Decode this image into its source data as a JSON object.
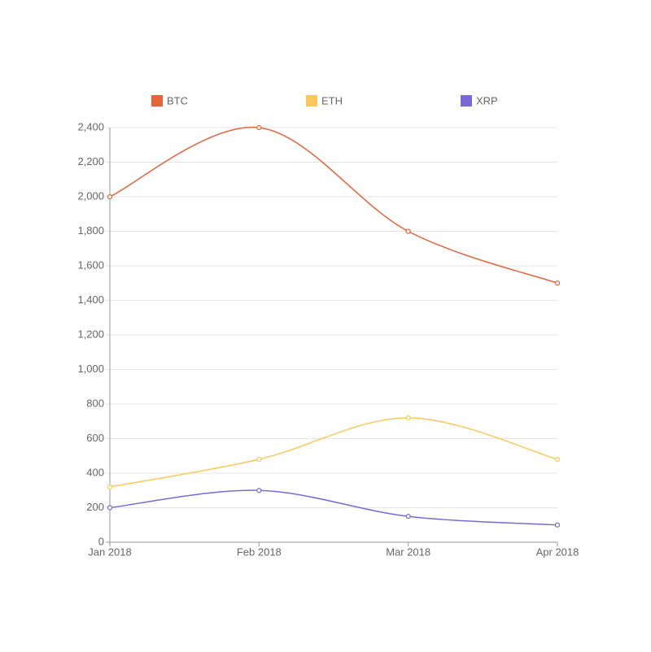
{
  "chart_data": {
    "type": "line",
    "categories": [
      "Jan 2018",
      "Feb 2018",
      "Mar 2018",
      "Apr 2018"
    ],
    "series": [
      {
        "name": "BTC",
        "color": "#e4643c",
        "values": [
          2000,
          2400,
          1800,
          1500
        ]
      },
      {
        "name": "ETH",
        "color": "#f9c85a",
        "values": [
          320,
          480,
          720,
          480
        ]
      },
      {
        "name": "XRP",
        "color": "#7b68d8",
        "values": [
          200,
          300,
          150,
          100
        ]
      }
    ],
    "ylim": [
      0,
      2400
    ],
    "yticks": [
      0,
      200,
      400,
      600,
      800,
      {
        "value": 1000,
        "label": "1,000"
      },
      {
        "value": 1200,
        "label": "1,200"
      },
      {
        "value": 1400,
        "label": "1,400"
      },
      {
        "value": 1600,
        "label": "1,600"
      },
      {
        "value": 1800,
        "label": "1,800"
      },
      {
        "value": 2000,
        "label": "2,000"
      },
      {
        "value": 2200,
        "label": "2,200"
      },
      {
        "value": 2400,
        "label": "2,400"
      }
    ],
    "grid": true,
    "legend": "top"
  }
}
